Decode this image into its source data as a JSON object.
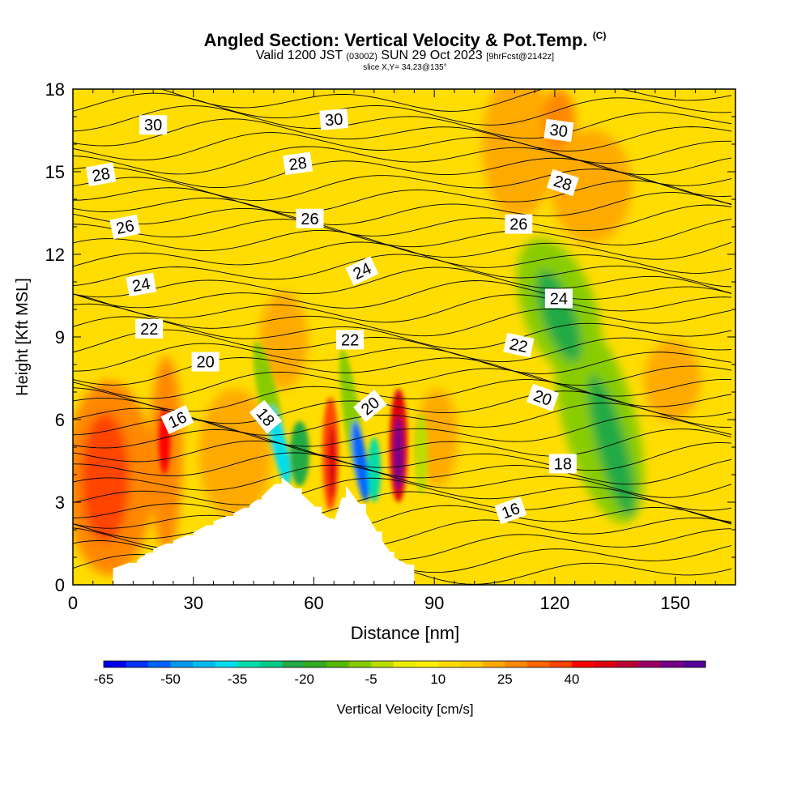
{
  "header": {
    "title_main": "Angled Section: Vertical Velocity & Pot.Temp.",
    "title_unit": "(C)",
    "valid_prefix": "Valid 1200 JST",
    "valid_utc": "(0300Z)",
    "valid_date": "SUN 29 Oct 2023",
    "forecast_tag": "[9hrFcst@2142z]",
    "slice_info": "slice X,Y= 34,23@135°"
  },
  "chart_data": {
    "type": "heatmap",
    "xlabel": "Distance [nm]",
    "ylabel": "Height [Kft MSL]",
    "xlim": [
      0,
      165
    ],
    "ylim": [
      0,
      18
    ],
    "x_ticks": [
      0,
      30,
      60,
      90,
      120,
      150
    ],
    "y_ticks": [
      0,
      3,
      6,
      9,
      12,
      15,
      18
    ],
    "terrain_profile": [
      [
        10,
        0.6
      ],
      [
        16,
        0.9
      ],
      [
        20,
        1.3
      ],
      [
        25,
        1.6
      ],
      [
        30,
        1.9
      ],
      [
        35,
        2.3
      ],
      [
        40,
        2.6
      ],
      [
        44,
        2.9
      ],
      [
        47,
        3.2
      ],
      [
        52,
        3.9
      ],
      [
        57,
        3.3
      ],
      [
        62,
        2.6
      ],
      [
        65,
        2.3
      ],
      [
        68,
        3.6
      ],
      [
        73,
        2.6
      ],
      [
        77,
        1.6
      ],
      [
        80,
        1.0
      ],
      [
        85,
        0.6
      ]
    ],
    "contours_label": "Pot.Temp. (C)",
    "contour_labels": [
      {
        "value": "30",
        "x": 20,
        "y": 16.7,
        "angle": 0
      },
      {
        "value": "30",
        "x": 65,
        "y": 16.9,
        "angle": -5
      },
      {
        "value": "30",
        "x": 121,
        "y": 16.5,
        "angle": 8
      },
      {
        "value": "28",
        "x": 7,
        "y": 14.9,
        "angle": -10
      },
      {
        "value": "28",
        "x": 56,
        "y": 15.3,
        "angle": -8
      },
      {
        "value": "28",
        "x": 122,
        "y": 14.6,
        "angle": 18
      },
      {
        "value": "26",
        "x": 13,
        "y": 13.0,
        "angle": -12
      },
      {
        "value": "26",
        "x": 59,
        "y": 13.3,
        "angle": 0
      },
      {
        "value": "26",
        "x": 111,
        "y": 13.1,
        "angle": 0
      },
      {
        "value": "24",
        "x": 17,
        "y": 10.9,
        "angle": -10
      },
      {
        "value": "24",
        "x": 72,
        "y": 11.4,
        "angle": -25
      },
      {
        "value": "24",
        "x": 121,
        "y": 10.4,
        "angle": 0
      },
      {
        "value": "22",
        "x": 19,
        "y": 9.3,
        "angle": 0
      },
      {
        "value": "22",
        "x": 69,
        "y": 8.9,
        "angle": 0
      },
      {
        "value": "22",
        "x": 111,
        "y": 8.7,
        "angle": 12
      },
      {
        "value": "20",
        "x": 33,
        "y": 8.1,
        "angle": 0
      },
      {
        "value": "20",
        "x": 74,
        "y": 6.5,
        "angle": -40
      },
      {
        "value": "20",
        "x": 117,
        "y": 6.8,
        "angle": 20
      },
      {
        "value": "18",
        "x": 48,
        "y": 6.1,
        "angle": 50
      },
      {
        "value": "18",
        "x": 122,
        "y": 4.4,
        "angle": 0
      },
      {
        "value": "16",
        "x": 26,
        "y": 6.0,
        "angle": -25
      },
      {
        "value": "16",
        "x": 109,
        "y": 2.7,
        "angle": -20
      }
    ],
    "colorbar": {
      "label": "Vertical Velocity [cm/s]",
      "tick_labels": [
        "-65",
        "-50",
        "-35",
        "-20",
        "-5",
        "10",
        "25",
        "40"
      ],
      "min": -65,
      "step": 5,
      "colors": [
        "#0000ee",
        "#0033ff",
        "#0066ff",
        "#0099ee",
        "#00bbee",
        "#00ddee",
        "#00ddaa",
        "#00cc88",
        "#22aa44",
        "#33aa22",
        "#55bb00",
        "#88cc00",
        "#bbdd00",
        "#eeee00",
        "#ffee00",
        "#ffdd00",
        "#ffcc00",
        "#ffaa00",
        "#ff8800",
        "#ff6600",
        "#ff4400",
        "#ff0000",
        "#dd0011",
        "#bb0033",
        "#990066",
        "#770088",
        "#550099"
      ]
    }
  }
}
